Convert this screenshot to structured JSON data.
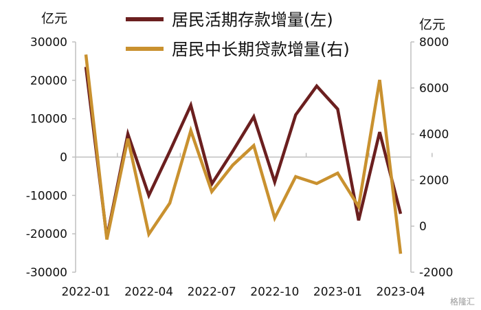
{
  "chart_data": {
    "type": "line",
    "categories": [
      "2022-01",
      "2022-02",
      "2022-03",
      "2022-04",
      "2022-05",
      "2022-06",
      "2022-07",
      "2022-08",
      "2022-09",
      "2022-10",
      "2022-11",
      "2022-12",
      "2023-01",
      "2023-02",
      "2023-03",
      "2023-04"
    ],
    "x_tick_labels": [
      "2022-01",
      "2022-04",
      "2022-07",
      "2022-10",
      "2023-01",
      "2023-04"
    ],
    "left_axis": {
      "unit": "亿元",
      "ylim": [
        -30000,
        30000
      ],
      "ticks": [
        "30000",
        "20000",
        "10000",
        "0",
        "-10000",
        "-20000",
        "-30000"
      ]
    },
    "right_axis": {
      "unit": "亿元",
      "ylim": [
        -2000,
        8000
      ],
      "ticks": [
        "8000",
        "6000",
        "4000",
        "2000",
        "0",
        "-2000"
      ]
    },
    "series": [
      {
        "name": "居民活期存款增量(左)",
        "axis": "left",
        "color": "#6b1f1f",
        "values": [
          23500,
          -21000,
          6000,
          -10000,
          1500,
          13500,
          -7000,
          1500,
          10500,
          -6500,
          11000,
          18500,
          12500,
          -16500,
          6500,
          -14800
        ]
      },
      {
        "name": "居民中长期贷款增量(右)",
        "axis": "right",
        "color": "#c9912f",
        "values": [
          7450,
          -580,
          3800,
          -350,
          1000,
          4150,
          1500,
          2650,
          3500,
          350,
          2150,
          1850,
          2300,
          850,
          6350,
          -1200
        ]
      }
    ]
  },
  "watermark": "格隆汇"
}
